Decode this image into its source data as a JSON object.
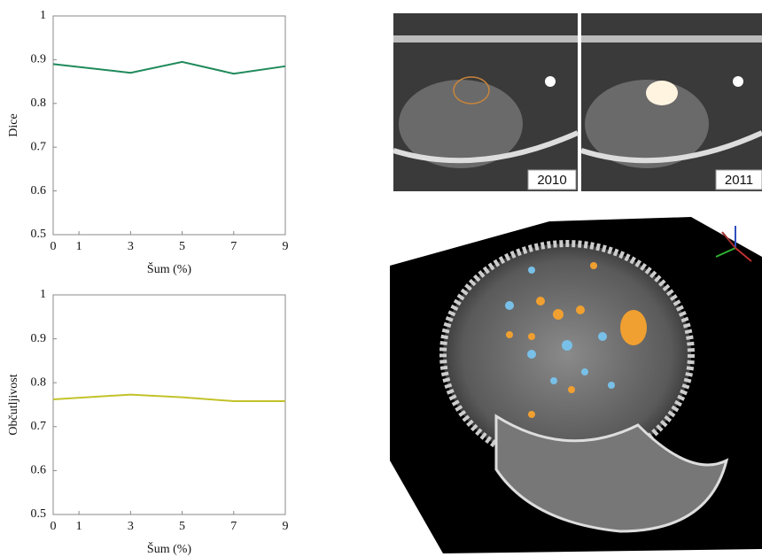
{
  "chart_data": [
    {
      "type": "line",
      "y_label": "Dice",
      "x_label": "Šum (%)",
      "x": [
        0,
        3,
        5,
        7,
        9
      ],
      "series": [
        {
          "color": "#1f8a5a",
          "values": [
            0.89,
            0.87,
            0.895,
            0.868,
            0.885
          ]
        }
      ],
      "xlim": [
        0,
        9
      ],
      "xticks": [
        0,
        1,
        3,
        5,
        7,
        9
      ],
      "ylim": [
        0.5,
        1
      ],
      "yticks": [
        0.5,
        0.6,
        0.7,
        0.8,
        0.9,
        1
      ]
    },
    {
      "type": "line",
      "y_label": "Občutljivost",
      "x_label": "Šum (%)",
      "x": [
        0,
        3,
        5,
        7,
        9
      ],
      "series": [
        {
          "color": "#c2c22a",
          "values": [
            0.762,
            0.773,
            0.767,
            0.758,
            0.758
          ]
        }
      ],
      "xlim": [
        0,
        9
      ],
      "xticks": [
        0,
        1,
        3,
        5,
        7,
        9
      ],
      "ylim": [
        0.5,
        1
      ],
      "yticks": [
        0.5,
        0.6,
        0.7,
        0.8,
        0.9,
        1
      ]
    }
  ],
  "image_labels": [
    "2010",
    "2011"
  ]
}
